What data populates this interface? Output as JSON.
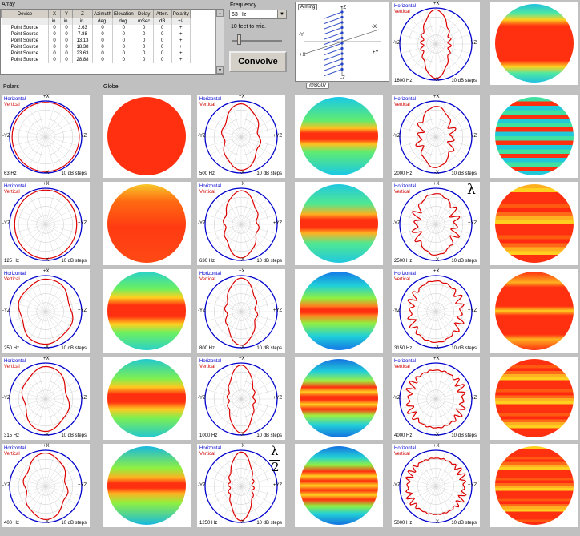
{
  "array": {
    "title": "Array",
    "headers": [
      "Device",
      "X",
      "Y",
      "Z",
      "Azimuth",
      "Elevation",
      "Delay",
      "Atten.",
      "Polarity"
    ],
    "units": [
      "",
      "in.",
      "in.",
      "in.",
      "deg.",
      "deg.",
      "mSec",
      "dB",
      "+/-"
    ],
    "rows": [
      [
        "Point Source",
        "0",
        "0",
        "2.63",
        "0",
        "0",
        "0",
        "0",
        "+"
      ],
      [
        "Point Source",
        "0",
        "0",
        "7.88",
        "0",
        "0",
        "0",
        "0",
        "+"
      ],
      [
        "Point Source",
        "0",
        "0",
        "13.13",
        "0",
        "0",
        "0",
        "0",
        "+"
      ],
      [
        "Point Source",
        "0",
        "0",
        "18.38",
        "0",
        "0",
        "0",
        "0",
        "+"
      ],
      [
        "Point Source",
        "0",
        "0",
        "23.63",
        "0",
        "0",
        "0",
        "0",
        "+"
      ],
      [
        "Point Source",
        "0",
        "0",
        "28.88",
        "0",
        "0",
        "0",
        "0",
        "+"
      ]
    ]
  },
  "frequency": {
    "label": "Frequency",
    "value": "63 Hz",
    "distance_label": "10 feet to mic.",
    "convolve_label": "Convolve"
  },
  "aiming": {
    "tab_label": "Aiming",
    "axis_z_top": "+Z",
    "axis_z_bottom": "-Z",
    "axis_y_left": "-Y",
    "axis_y_right": "+Y",
    "axis_x_left": "+X",
    "axis_x_right": "-X"
  },
  "bg_tab": "@BG07",
  "section_labels": {
    "polars": "Polars",
    "globe": "Globe"
  },
  "legend": {
    "horizontal": "Horizontal",
    "vertical": "Vertical"
  },
  "polar_labels": {
    "top": "+X",
    "bottom": "-X",
    "left": "-YZ",
    "right": "+YZ",
    "steps": "10 dB steps"
  },
  "colors": {
    "horizontal": "#0000cc",
    "vertical": "#dd0000"
  },
  "symbols": {
    "lambda": "λ",
    "two": "2"
  },
  "plots": [
    {
      "freq": "63 Hz"
    },
    {
      "freq": "125 Hz"
    },
    {
      "freq": "250 Hz"
    },
    {
      "freq": "315 Hz"
    },
    {
      "freq": "400 Hz"
    },
    {
      "freq": "500 Hz"
    },
    {
      "freq": "630 Hz"
    },
    {
      "freq": "800 Hz"
    },
    {
      "freq": "1000 Hz"
    },
    {
      "freq": "1250 Hz"
    },
    {
      "freq": "1600 Hz"
    },
    {
      "freq": "2000 Hz"
    },
    {
      "freq": "2500 Hz"
    },
    {
      "freq": "3150 Hz"
    },
    {
      "freq": "4000 Hz"
    },
    {
      "freq": "5000 Hz"
    }
  ]
}
